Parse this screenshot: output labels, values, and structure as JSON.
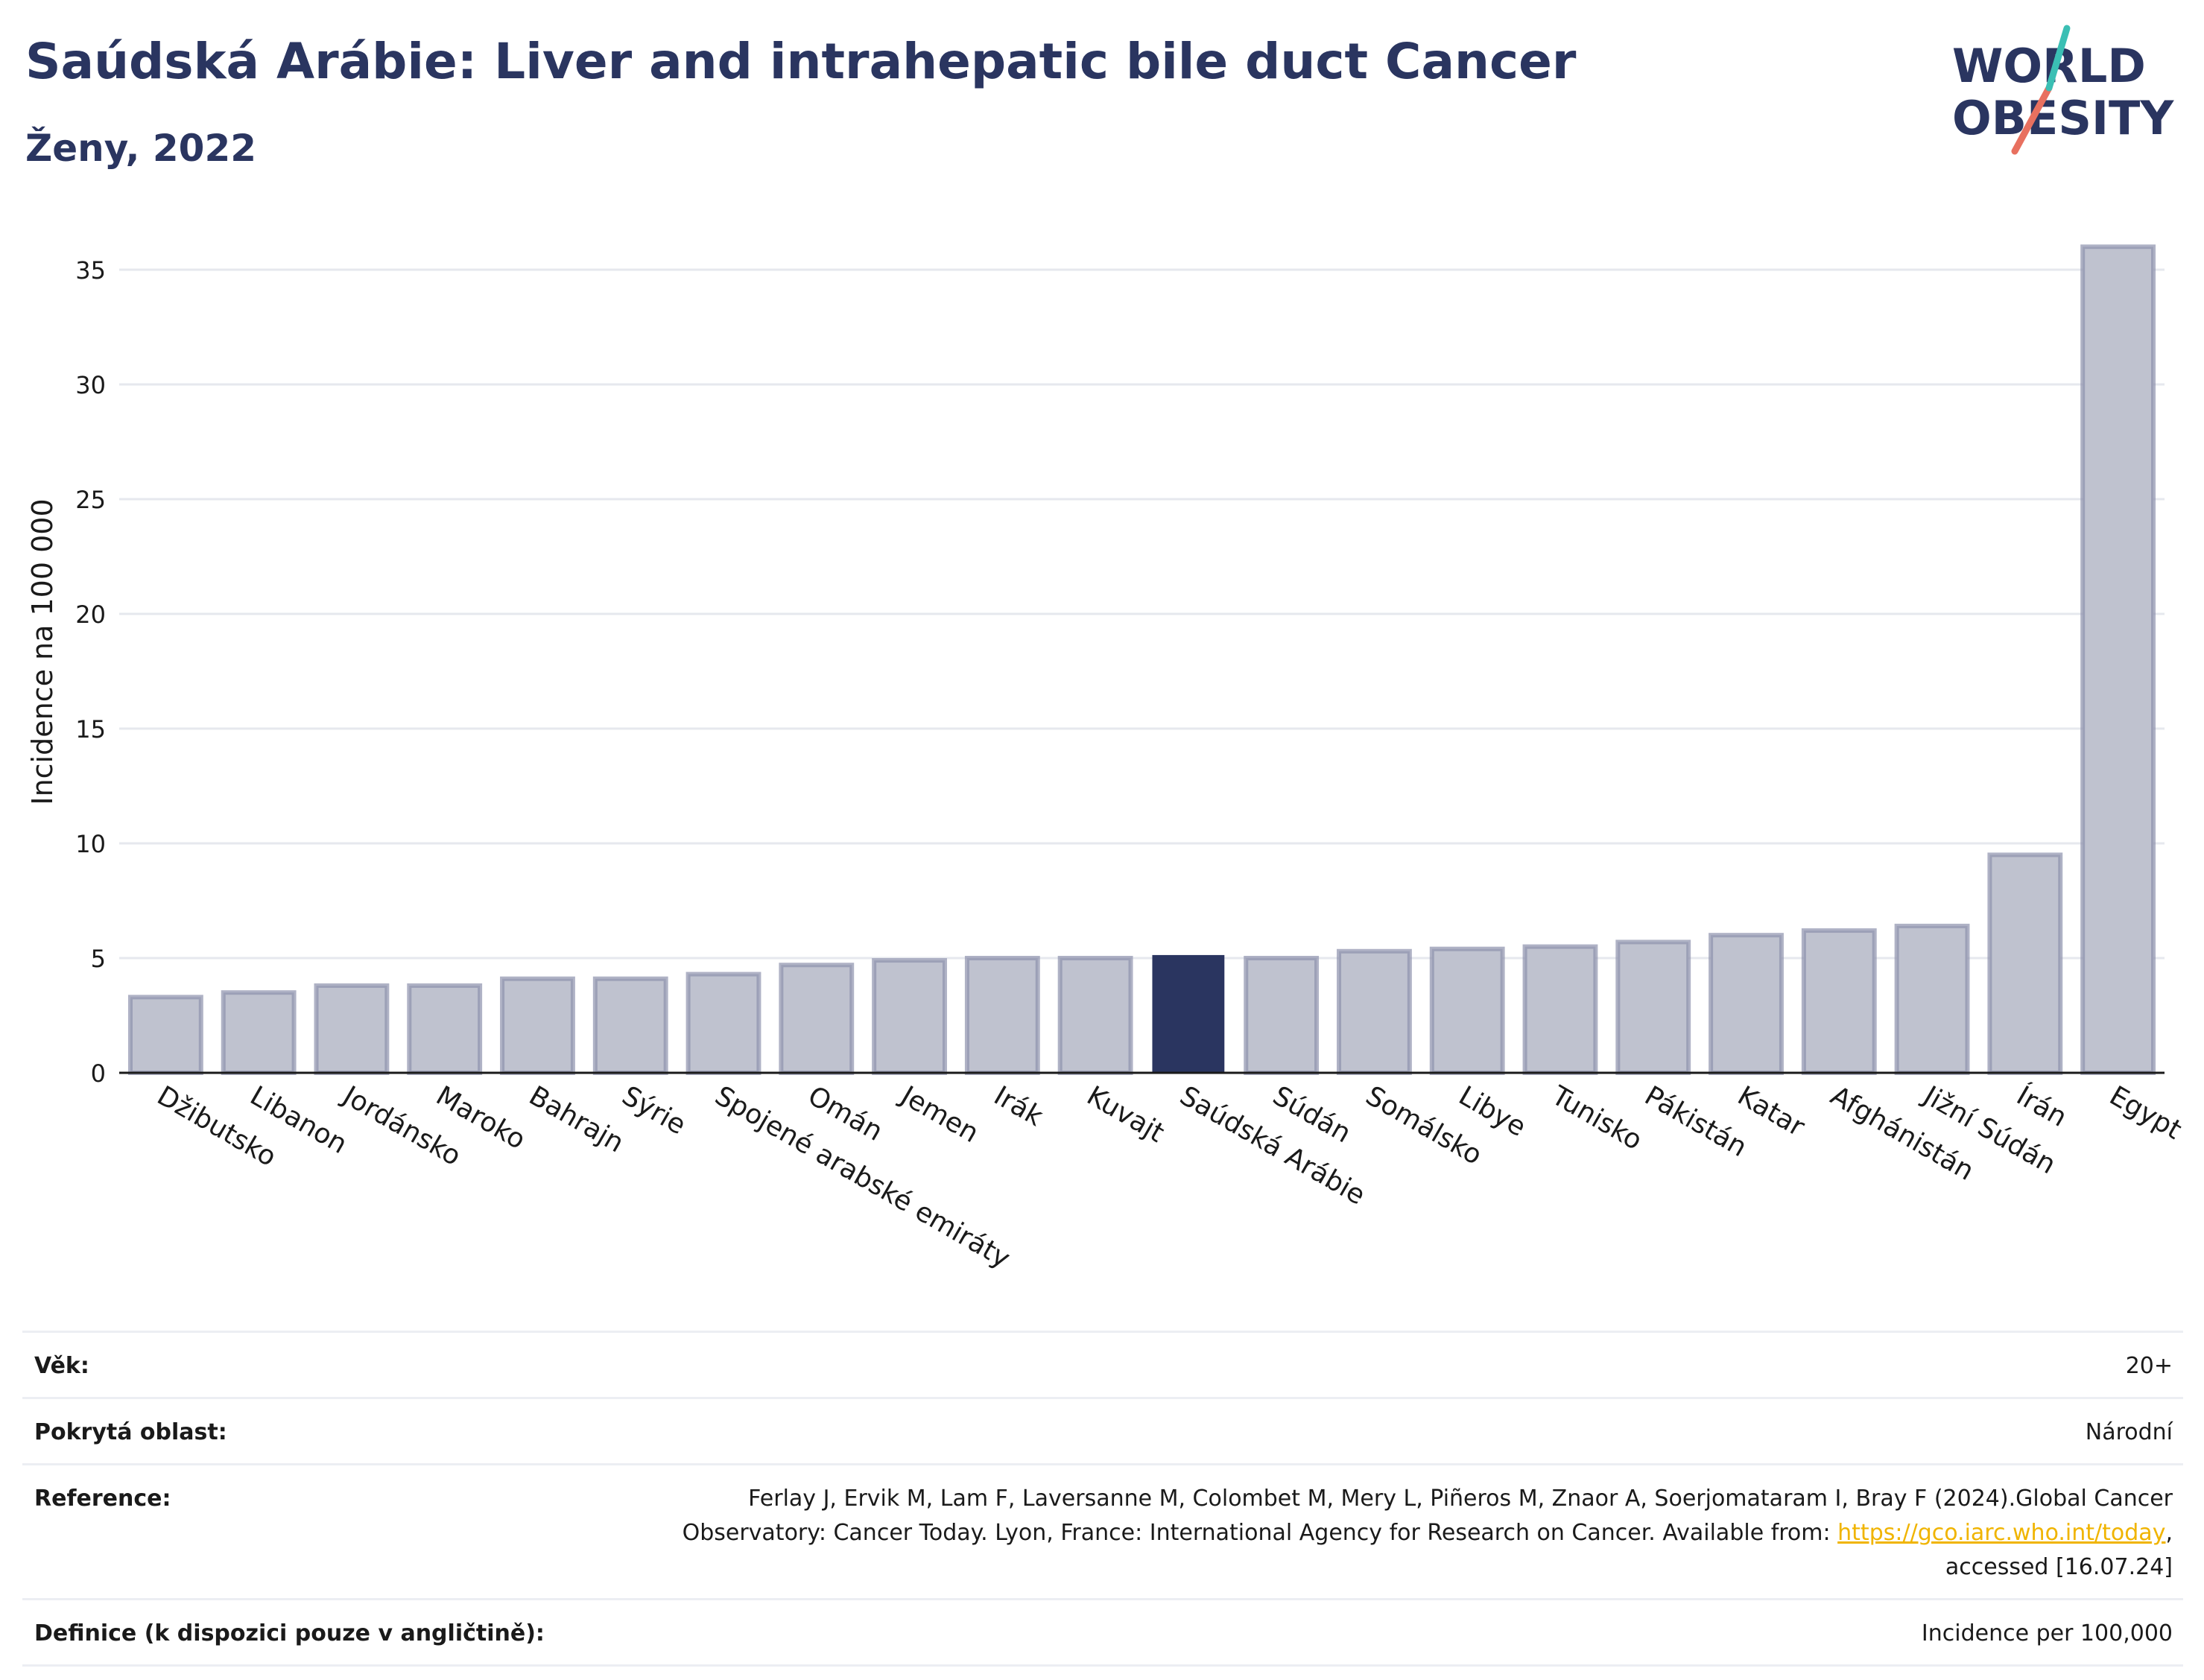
{
  "header": {
    "title": "Saúdská Arábie: Liver and intrahepatic bile duct Cancer",
    "subtitle": "Ženy, 2022"
  },
  "logo": {
    "line1": "WORLD",
    "line2": "OBESITY"
  },
  "chart_data": {
    "type": "bar",
    "ylabel": "Incidence na 100 000",
    "xlabel": "",
    "ylim": [
      0,
      37
    ],
    "yticks": [
      0,
      5,
      10,
      15,
      20,
      25,
      30,
      35
    ],
    "grid": true,
    "highlight": "Saúdská Arábie",
    "colors": {
      "bar": "#bfc2cf",
      "bar_edge": "#8d92ad",
      "highlight": "#2a3560"
    },
    "categories": [
      "Džibutsko",
      "Libanon",
      "Jordánsko",
      "Maroko",
      "Bahrajn",
      "Sýrie",
      "Spojené arabské emiráty",
      "Omán",
      "Jemen",
      "Irák",
      "Kuvajt",
      "Saúdská Arábie",
      "Súdán",
      "Somálsko",
      "Libye",
      "Tunisko",
      "Pákistán",
      "Katar",
      "Afghánistán",
      "Jižní Súdán",
      "Írán",
      "Egypt"
    ],
    "values": [
      3.3,
      3.5,
      3.8,
      3.8,
      4.1,
      4.1,
      4.3,
      4.7,
      4.9,
      5.0,
      5.0,
      5.1,
      5.0,
      5.3,
      5.4,
      5.5,
      5.7,
      6.0,
      6.2,
      6.4,
      9.5,
      36.0
    ]
  },
  "info": {
    "age_label": "Věk:",
    "age_value": "20+",
    "coverage_label": "Pokrytá oblast:",
    "coverage_value": "Národní",
    "reference_label": "Reference:",
    "reference_text_1": "Ferlay J, Ervik M, Lam F, Laversanne M, Colombet M, Mery L, Piñeros M, Znaor A, Soerjomataram I, Bray F (2024).Global Cancer\nObservatory: Cancer Today. Lyon, France: International Agency for Research on Cancer. Available from: ",
    "reference_link": "https://gco.iarc.who.int/today",
    "reference_text_2": ",\naccessed [16.07.24]",
    "definition_label": "Definice (k dispozici pouze v angličtině):",
    "definition_value": "Incidence per 100,000"
  }
}
